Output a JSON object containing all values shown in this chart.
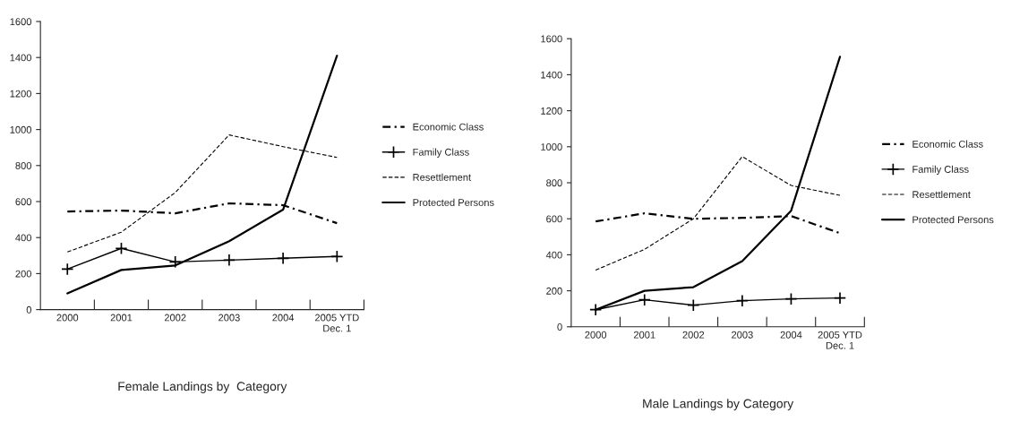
{
  "chart_data": [
    {
      "type": "line",
      "title": "Female Landings by  Category",
      "categories": [
        "2000",
        "2001",
        "2002",
        "2003",
        "2004",
        "2005 YTD\nDec. 1"
      ],
      "ylim": [
        0,
        1600
      ],
      "yticks": [
        0,
        200,
        400,
        600,
        800,
        1000,
        1200,
        1400,
        1600
      ],
      "legend": "right",
      "grid": false,
      "series": [
        {
          "name": "Economic Class",
          "color": "#000000",
          "line_style": "dashdot",
          "values": [
            545,
            550,
            535,
            590,
            580,
            480
          ]
        },
        {
          "name": "Family Class",
          "color": "#000000",
          "line_style": "solid",
          "marker": "cross",
          "values": [
            225,
            340,
            265,
            275,
            285,
            295
          ]
        },
        {
          "name": "Resettlement",
          "color": "#000000",
          "line_style": "dashed",
          "values": [
            320,
            430,
            650,
            970,
            905,
            845
          ]
        },
        {
          "name": "Protected Persons",
          "color": "#000000",
          "line_style": "solid",
          "values": [
            90,
            220,
            245,
            380,
            555,
            1410
          ]
        }
      ]
    },
    {
      "type": "line",
      "title": "Male Landings by Category",
      "categories": [
        "2000",
        "2001",
        "2002",
        "2003",
        "2004",
        "2005 YTD\nDec. 1"
      ],
      "ylim": [
        0,
        1600
      ],
      "yticks": [
        0,
        200,
        400,
        600,
        800,
        1000,
        1200,
        1400,
        1600
      ],
      "legend": "right",
      "grid": false,
      "series": [
        {
          "name": "Economic Class",
          "color": "#000000",
          "line_style": "dashdot",
          "values": [
            585,
            630,
            600,
            605,
            615,
            520
          ]
        },
        {
          "name": "Family Class",
          "color": "#000000",
          "line_style": "solid",
          "marker": "cross",
          "values": [
            95,
            150,
            120,
            145,
            155,
            160
          ]
        },
        {
          "name": "Resettlement",
          "color": "#000000",
          "line_style": "dashed",
          "values": [
            315,
            430,
            600,
            945,
            785,
            730
          ]
        },
        {
          "name": "Protected Persons",
          "color": "#000000",
          "line_style": "solid",
          "values": [
            95,
            200,
            220,
            365,
            645,
            1500
          ]
        }
      ]
    }
  ]
}
